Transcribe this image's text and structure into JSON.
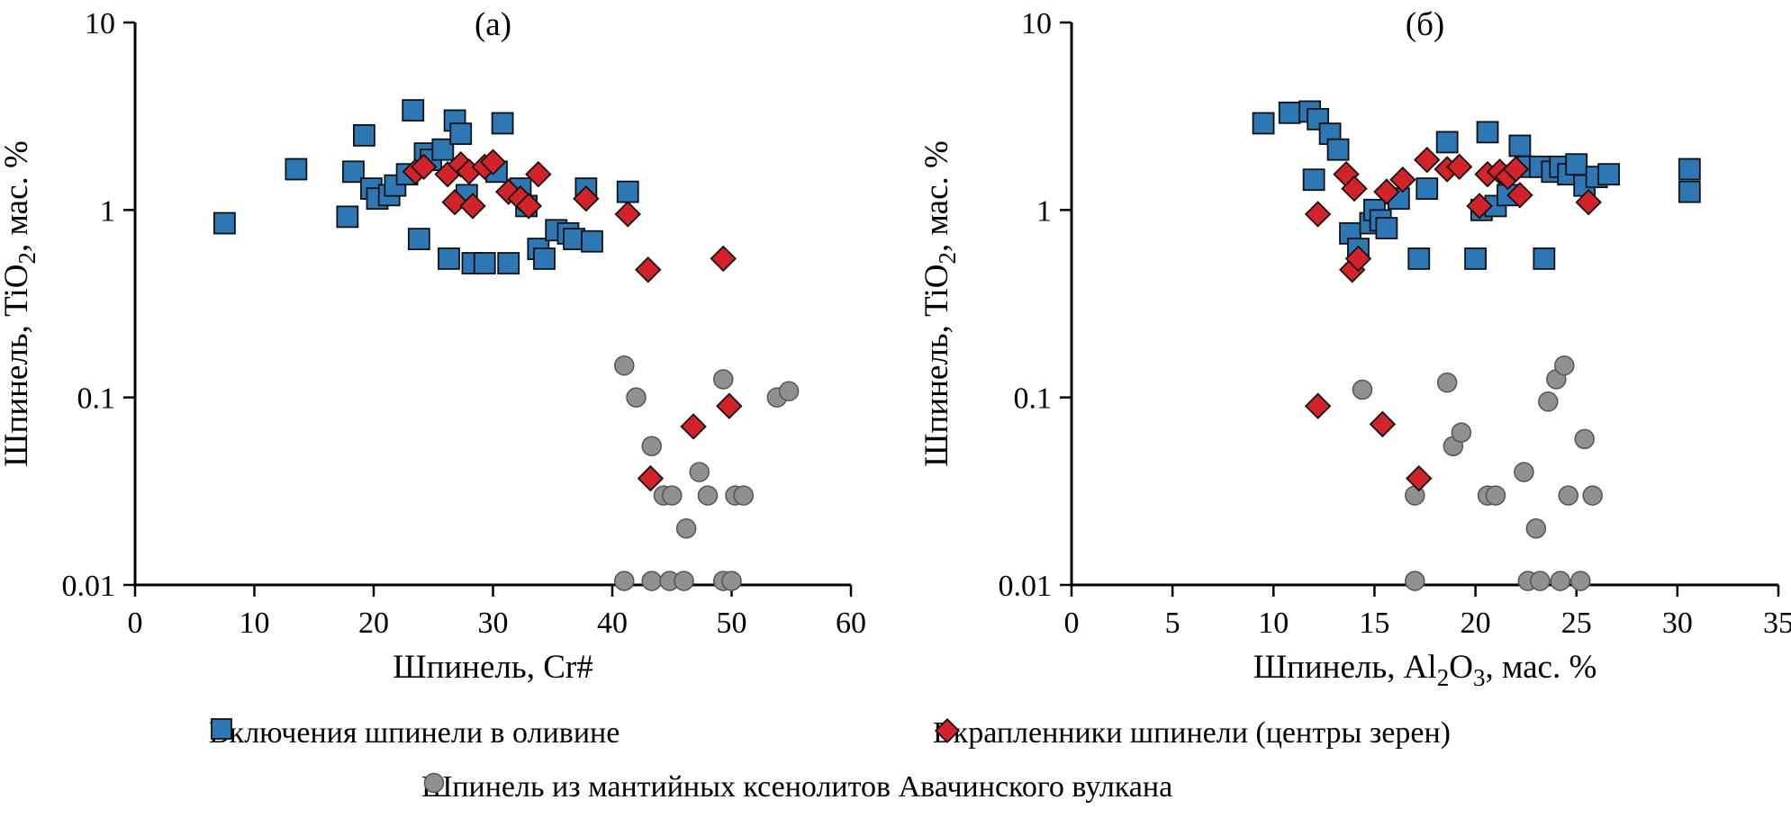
{
  "page": {
    "background": "#ffffff"
  },
  "legend": {
    "items": [
      {
        "label": "Включения шпинели в оливине",
        "marker": "square",
        "color": "#2e77b5"
      },
      {
        "label": "Вкрапленники шпинели (центры зерен)",
        "marker": "diamond",
        "color": "#d2232a"
      },
      {
        "label": "Шпинель из мантийных ксенолитов Авачинского вулкана",
        "marker": "circle",
        "color": "#909090"
      }
    ]
  },
  "chart_data": [
    {
      "type": "scatter",
      "panel_label": "(а)",
      "xlabel_parts": [
        {
          "t": "Шпинель, Cr#"
        }
      ],
      "ylabel_parts": [
        {
          "t": "Шпинель, TiO"
        },
        {
          "t": "2",
          "sub": true
        },
        {
          "t": ", мас. %"
        }
      ],
      "xlim": [
        0,
        60
      ],
      "x_ticks": [
        0,
        10,
        20,
        30,
        40,
        50,
        60
      ],
      "y_scale": "log",
      "ylim": [
        0.01,
        10
      ],
      "y_ticks": [
        0.01,
        0.1,
        1,
        10
      ],
      "y_tick_labels": [
        "0.01",
        "0.1",
        "1",
        "10"
      ],
      "grid": false,
      "series": [
        {
          "name": "Включения шпинели в оливине",
          "marker": "square",
          "color": "#2e77b5",
          "z": 1,
          "points": [
            [
              7.5,
              0.85
            ],
            [
              13.5,
              1.65
            ],
            [
              17.8,
              0.92
            ],
            [
              18.3,
              1.6
            ],
            [
              19.2,
              2.5
            ],
            [
              19.8,
              1.3
            ],
            [
              20.3,
              1.15
            ],
            [
              21.3,
              1.2
            ],
            [
              21.8,
              1.35
            ],
            [
              22.8,
              1.55
            ],
            [
              23.3,
              3.4
            ],
            [
              23.8,
              0.7
            ],
            [
              24.3,
              2.0
            ],
            [
              24.8,
              1.85
            ],
            [
              25.8,
              2.1
            ],
            [
              26.3,
              0.55
            ],
            [
              26.8,
              3.0
            ],
            [
              27.3,
              2.55
            ],
            [
              27.8,
              1.2
            ],
            [
              28.3,
              0.52
            ],
            [
              29.3,
              0.52
            ],
            [
              30.3,
              1.6
            ],
            [
              30.8,
              2.9
            ],
            [
              31.3,
              0.52
            ],
            [
              32.3,
              1.3
            ],
            [
              32.8,
              1.05
            ],
            [
              33.8,
              0.62
            ],
            [
              34.3,
              0.55
            ],
            [
              35.3,
              0.78
            ],
            [
              36.3,
              0.75
            ],
            [
              36.8,
              0.7
            ],
            [
              37.8,
              1.3
            ],
            [
              38.3,
              0.68
            ],
            [
              41.3,
              1.25
            ]
          ]
        },
        {
          "name": "Вкрапленники шпинели (центры зерен)",
          "marker": "diamond",
          "color": "#d2232a",
          "z": 2,
          "points": [
            [
              23.5,
              1.6
            ],
            [
              24.2,
              1.7
            ],
            [
              26.2,
              1.55
            ],
            [
              26.8,
              1.1
            ],
            [
              27.3,
              1.75
            ],
            [
              28.0,
              1.6
            ],
            [
              28.3,
              1.05
            ],
            [
              29.3,
              1.7
            ],
            [
              30.0,
              1.8
            ],
            [
              31.3,
              1.25
            ],
            [
              32.3,
              1.15
            ],
            [
              33.0,
              1.05
            ],
            [
              33.8,
              1.55
            ],
            [
              37.8,
              1.15
            ],
            [
              41.3,
              0.95
            ],
            [
              43.0,
              0.48
            ],
            [
              49.3,
              0.55
            ],
            [
              46.8,
              0.07
            ],
            [
              49.8,
              0.09
            ],
            [
              43.2,
              0.037
            ]
          ]
        },
        {
          "name": "Шпинель из мантийных ксенолитов Авачинского вулкана",
          "marker": "circle",
          "color": "#909090",
          "z": 0,
          "points": [
            [
              41.0,
              0.148
            ],
            [
              42.0,
              0.1
            ],
            [
              43.3,
              0.055
            ],
            [
              44.3,
              0.03
            ],
            [
              45.0,
              0.03
            ],
            [
              46.2,
              0.02
            ],
            [
              47.3,
              0.04
            ],
            [
              48.0,
              0.03
            ],
            [
              49.3,
              0.125
            ],
            [
              50.3,
              0.03
            ],
            [
              51.0,
              0.03
            ],
            [
              53.8,
              0.1
            ],
            [
              54.8,
              0.108
            ],
            [
              41.0,
              0.0105
            ],
            [
              43.3,
              0.0105
            ],
            [
              44.8,
              0.0105
            ],
            [
              46.0,
              0.0105
            ],
            [
              49.3,
              0.0105
            ],
            [
              50.0,
              0.0105
            ]
          ]
        }
      ]
    },
    {
      "type": "scatter",
      "panel_label": "(б)",
      "xlabel_parts": [
        {
          "t": "Шпинель, Al"
        },
        {
          "t": "2",
          "sub": true
        },
        {
          "t": "O"
        },
        {
          "t": "3",
          "sub": true
        },
        {
          "t": ", мас. %"
        }
      ],
      "ylabel_parts": [
        {
          "t": "Шпинель, TiO"
        },
        {
          "t": "2",
          "sub": true
        },
        {
          "t": ", мас. %"
        }
      ],
      "xlim": [
        0,
        35
      ],
      "x_ticks": [
        0,
        5,
        10,
        15,
        20,
        25,
        30,
        35
      ],
      "y_scale": "log",
      "ylim": [
        0.01,
        10
      ],
      "y_ticks": [
        0.01,
        0.1,
        1,
        10
      ],
      "y_tick_labels": [
        "0.01",
        "0.1",
        "1",
        "10"
      ],
      "grid": false,
      "series": [
        {
          "name": "Включения шпинели в оливине",
          "marker": "square",
          "color": "#2e77b5",
          "z": 1,
          "points": [
            [
              9.5,
              2.9
            ],
            [
              10.8,
              3.3
            ],
            [
              11.8,
              3.35
            ],
            [
              12.2,
              3.05
            ],
            [
              12.0,
              1.45
            ],
            [
              12.8,
              2.55
            ],
            [
              13.2,
              2.1
            ],
            [
              13.8,
              0.75
            ],
            [
              14.2,
              0.62
            ],
            [
              14.8,
              0.85
            ],
            [
              15.0,
              1.0
            ],
            [
              15.3,
              0.88
            ],
            [
              15.6,
              0.8
            ],
            [
              16.2,
              1.15
            ],
            [
              17.2,
              0.55
            ],
            [
              17.6,
              1.3
            ],
            [
              18.6,
              2.3
            ],
            [
              20.0,
              0.55
            ],
            [
              20.3,
              1.0
            ],
            [
              20.6,
              2.6
            ],
            [
              21.0,
              1.05
            ],
            [
              21.6,
              1.2
            ],
            [
              22.2,
              2.2
            ],
            [
              22.6,
              1.7
            ],
            [
              23.2,
              1.7
            ],
            [
              23.4,
              0.55
            ],
            [
              23.8,
              1.6
            ],
            [
              24.2,
              1.7
            ],
            [
              24.6,
              1.55
            ],
            [
              25.0,
              1.75
            ],
            [
              25.4,
              1.35
            ],
            [
              26.0,
              1.5
            ],
            [
              26.6,
              1.55
            ],
            [
              30.6,
              1.65
            ],
            [
              30.6,
              1.25
            ]
          ]
        },
        {
          "name": "Вкрапленники шпинели (центры зерен)",
          "marker": "diamond",
          "color": "#d2232a",
          "z": 2,
          "points": [
            [
              12.2,
              0.95
            ],
            [
              13.6,
              1.55
            ],
            [
              14.0,
              1.3
            ],
            [
              13.9,
              0.48
            ],
            [
              14.2,
              0.55
            ],
            [
              15.6,
              1.25
            ],
            [
              16.4,
              1.45
            ],
            [
              17.6,
              1.85
            ],
            [
              18.6,
              1.65
            ],
            [
              19.2,
              1.7
            ],
            [
              20.2,
              1.05
            ],
            [
              20.6,
              1.55
            ],
            [
              21.2,
              1.6
            ],
            [
              21.6,
              1.5
            ],
            [
              22.0,
              1.65
            ],
            [
              22.2,
              1.2
            ],
            [
              25.6,
              1.1
            ],
            [
              12.2,
              0.09
            ],
            [
              15.4,
              0.072
            ],
            [
              17.2,
              0.037
            ]
          ]
        },
        {
          "name": "Шпинель из мантийных ксенолитов Авачинского вулкана",
          "marker": "circle",
          "color": "#909090",
          "z": 0,
          "points": [
            [
              14.4,
              0.11
            ],
            [
              17.0,
              0.03
            ],
            [
              18.6,
              0.12
            ],
            [
              18.9,
              0.055
            ],
            [
              19.3,
              0.065
            ],
            [
              20.6,
              0.03
            ],
            [
              21.0,
              0.03
            ],
            [
              22.4,
              0.04
            ],
            [
              23.0,
              0.02
            ],
            [
              23.6,
              0.095
            ],
            [
              24.0,
              0.125
            ],
            [
              24.4,
              0.148
            ],
            [
              24.6,
              0.03
            ],
            [
              25.4,
              0.06
            ],
            [
              25.8,
              0.03
            ],
            [
              17.0,
              0.0105
            ],
            [
              22.6,
              0.0105
            ],
            [
              23.2,
              0.0105
            ],
            [
              24.2,
              0.0105
            ],
            [
              25.2,
              0.0105
            ]
          ]
        }
      ]
    }
  ]
}
